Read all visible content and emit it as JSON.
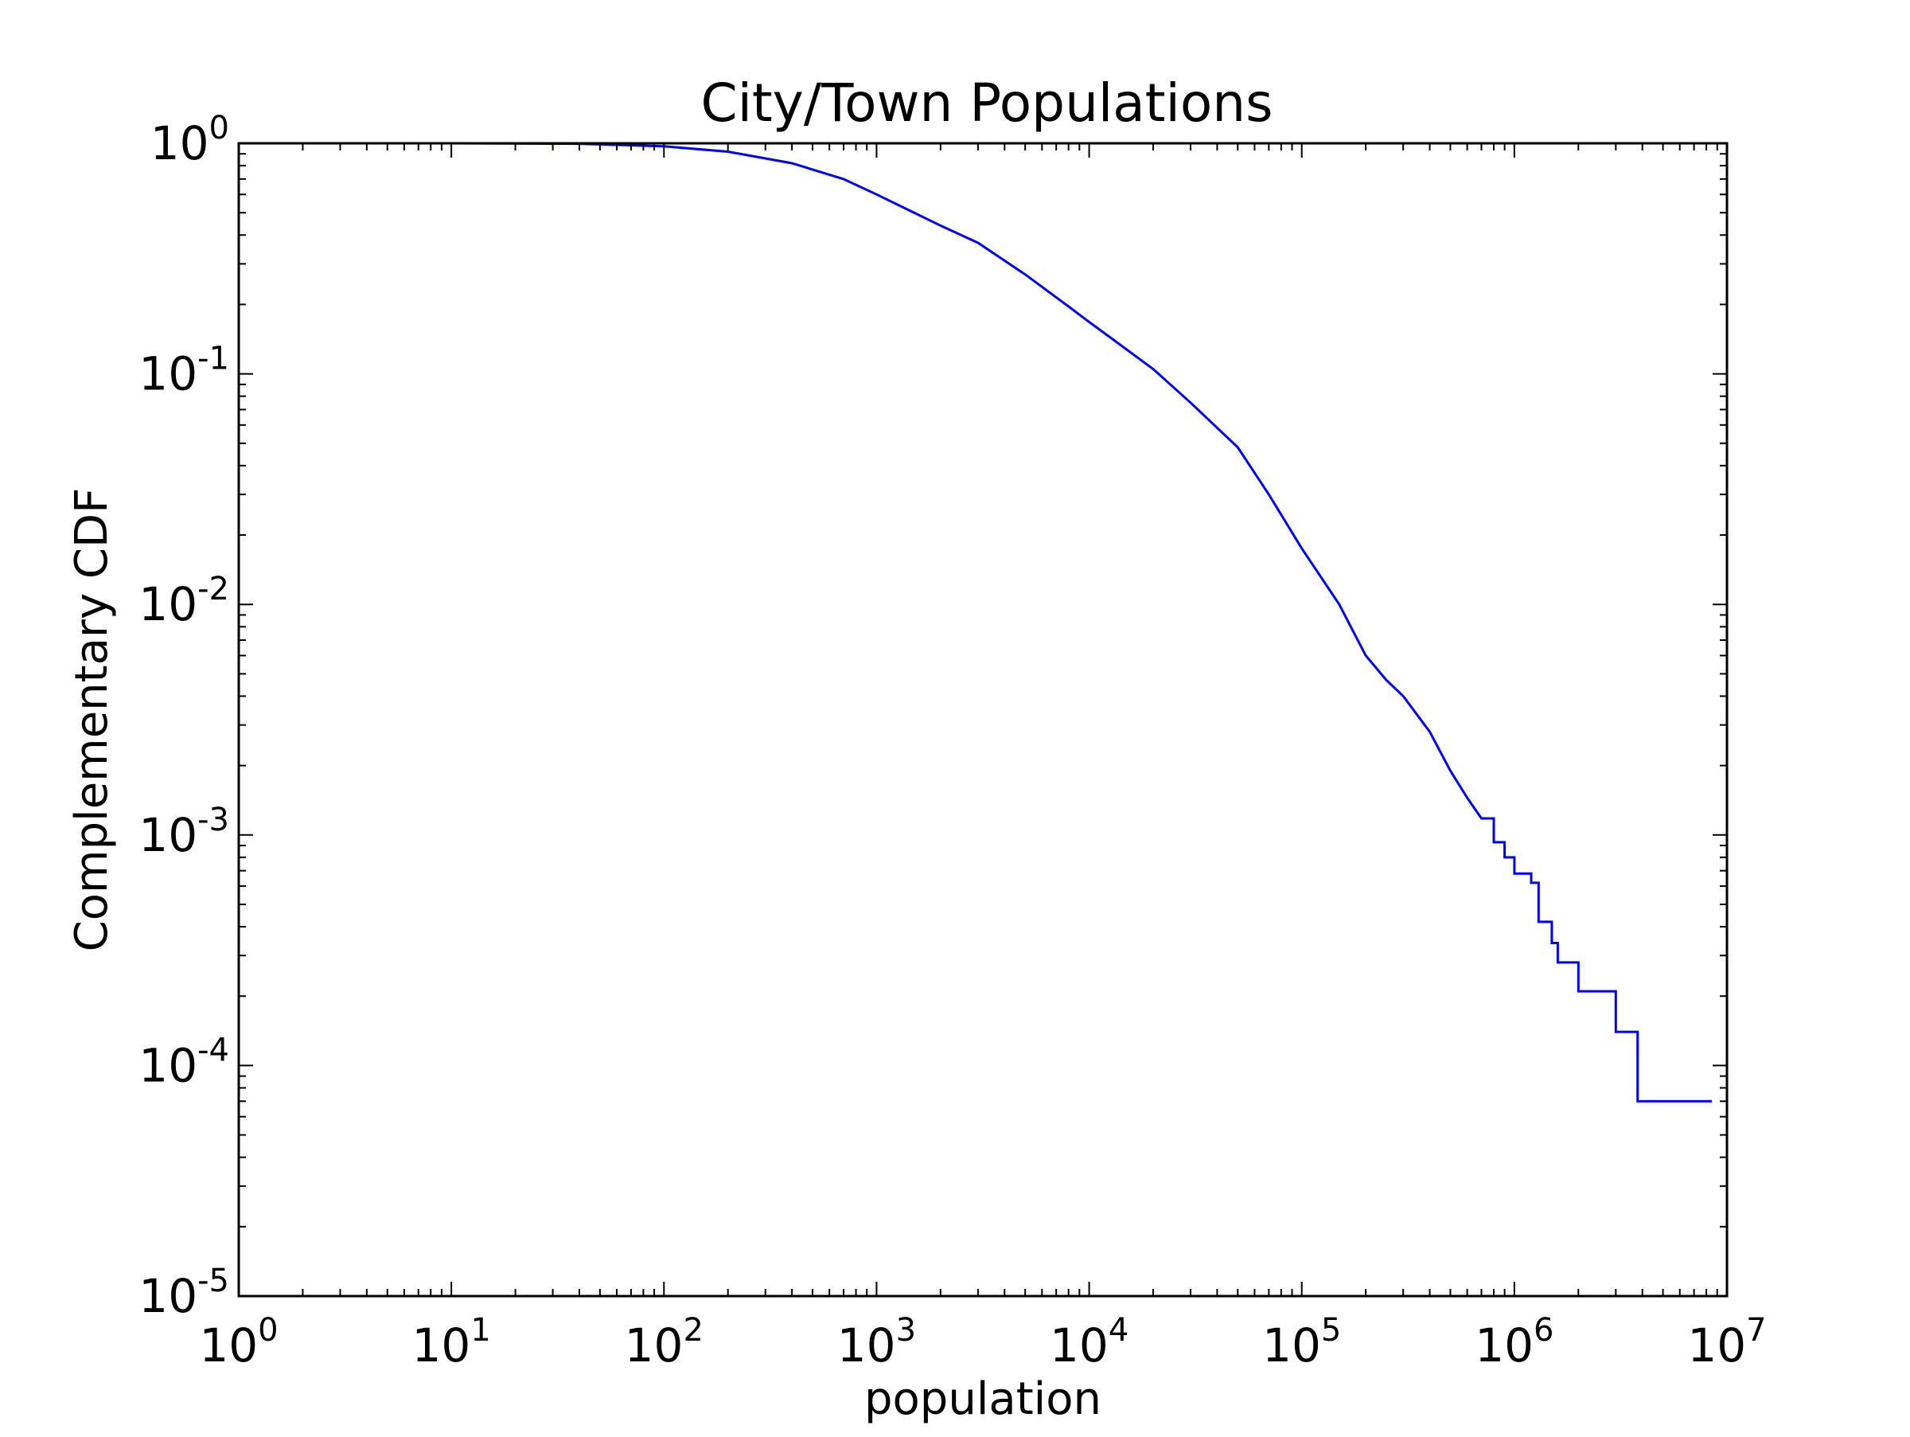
{
  "chart_data": {
    "type": "line",
    "title": "City/Town Populations",
    "xlabel": "population",
    "ylabel": "Complementary CDF",
    "xscale": "log",
    "yscale": "log",
    "xlim": [
      1,
      10000000
    ],
    "ylim": [
      1e-05,
      1
    ],
    "grid": false,
    "legend": "none",
    "x_ticks": [
      {
        "value": 1,
        "base": "10",
        "exp": "0"
      },
      {
        "value": 10,
        "base": "10",
        "exp": "1"
      },
      {
        "value": 100,
        "base": "10",
        "exp": "2"
      },
      {
        "value": 1000,
        "base": "10",
        "exp": "3"
      },
      {
        "value": 10000,
        "base": "10",
        "exp": "4"
      },
      {
        "value": 100000,
        "base": "10",
        "exp": "5"
      },
      {
        "value": 1000000,
        "base": "10",
        "exp": "6"
      },
      {
        "value": 10000000,
        "base": "10",
        "exp": "7"
      }
    ],
    "y_ticks": [
      {
        "value": 1,
        "base": "10",
        "exp": "0"
      },
      {
        "value": 0.1,
        "base": "10",
        "exp": "-1"
      },
      {
        "value": 0.01,
        "base": "10",
        "exp": "-2"
      },
      {
        "value": 0.001,
        "base": "10",
        "exp": "-3"
      },
      {
        "value": 0.0001,
        "base": "10",
        "exp": "-4"
      },
      {
        "value": 1e-05,
        "base": "10",
        "exp": "-5"
      }
    ],
    "series": [
      {
        "color": "#0000ff",
        "points": [
          [
            10,
            1.0
          ],
          [
            40,
            0.995
          ],
          [
            100,
            0.97
          ],
          [
            200,
            0.92
          ],
          [
            400,
            0.82
          ],
          [
            700,
            0.7
          ],
          [
            1000,
            0.6
          ],
          [
            2000,
            0.44
          ],
          [
            3000,
            0.37
          ],
          [
            5000,
            0.27
          ],
          [
            8000,
            0.196
          ],
          [
            10000,
            0.168
          ],
          [
            20000,
            0.105
          ],
          [
            30000,
            0.075
          ],
          [
            50000,
            0.048
          ],
          [
            70000,
            0.03
          ],
          [
            100000,
            0.0175
          ],
          [
            150000,
            0.01
          ],
          [
            200000,
            0.006
          ],
          [
            250000,
            0.0047
          ],
          [
            300000,
            0.004
          ],
          [
            400000,
            0.0028
          ],
          [
            500000,
            0.0019
          ],
          [
            600000,
            0.00145
          ],
          [
            700000,
            0.00118
          ],
          [
            800000,
            0.00093
          ],
          [
            900000,
            0.0008
          ],
          [
            1000000,
            0.00068
          ],
          [
            1200000,
            0.00062
          ],
          [
            1300000,
            0.00042
          ],
          [
            1500000,
            0.00034
          ],
          [
            1600000,
            0.00028
          ],
          [
            2000000,
            0.00021
          ],
          [
            3000000,
            0.00014
          ],
          [
            3800000,
            7e-05
          ],
          [
            8500000,
            7e-05
          ]
        ],
        "step_from": 700000
      }
    ]
  }
}
